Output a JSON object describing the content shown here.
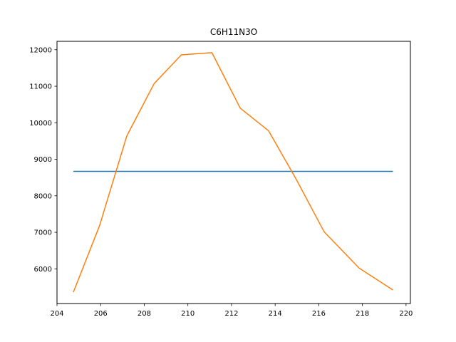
{
  "chart_data": {
    "type": "line",
    "title": "C6H11N3O",
    "xlabel": "",
    "ylabel": "",
    "xlim": [
      204,
      220.2
    ],
    "ylim": [
      5050,
      12230
    ],
    "xticks": [
      204,
      206,
      208,
      210,
      212,
      214,
      216,
      218,
      220
    ],
    "yticks": [
      6000,
      7000,
      8000,
      9000,
      10000,
      11000,
      12000
    ],
    "grid": false,
    "series": [
      {
        "color": "#1f77b4",
        "x": [
          204.75,
          219.4
        ],
        "y": [
          8670,
          8670
        ]
      },
      {
        "color": "#ff7f0e",
        "x": [
          204.75,
          205.95,
          207.2,
          208.45,
          209.7,
          211.1,
          212.4,
          213.7,
          214.95,
          216.25,
          217.85,
          219.4
        ],
        "y": [
          5360,
          7180,
          9640,
          11070,
          11860,
          11920,
          10400,
          9780,
          8470,
          7010,
          6020,
          5420
        ]
      }
    ]
  }
}
